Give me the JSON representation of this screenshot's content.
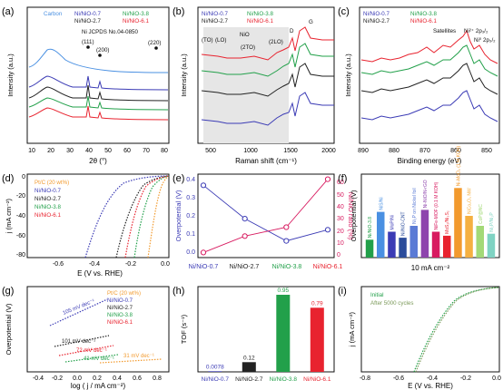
{
  "colors": {
    "carbon": "#4a90e2",
    "ni07": "#3b3bb5",
    "ni27": "#222222",
    "ni38": "#22a04a",
    "ni61": "#e8232f",
    "ptc": "#f29a2e",
    "magenta": "#d81b60",
    "axis": "#111111"
  },
  "panels": {
    "a": {
      "label": "(a)",
      "xlabel": "2θ (°)",
      "ylabel": "Intensity (a.u.)",
      "xticks": [
        "10",
        "20",
        "30",
        "40",
        "50",
        "60",
        "70",
        "80"
      ],
      "legend": [
        "Carbon",
        "Ni/NiO-0.7",
        "Ni/NiO-2.7",
        "Ni/NiO-3.8",
        "Ni/NiO-6.1"
      ],
      "peaks": [
        "(111)",
        "(200)",
        "(220)"
      ],
      "ref": "Ni JCPDS No.04-0850"
    },
    "b": {
      "label": "(b)",
      "xlabel": "Raman shift (cm⁻¹)",
      "ylabel": "Intensity (a.u.)",
      "xticks": [
        "500",
        "1000",
        "1500",
        "2000"
      ],
      "legend": [
        "Ni/NiO-0.7",
        "Ni/NiO-2.7",
        "Ni/NiO-3.8",
        "Ni/NiO-6.1"
      ],
      "annotations": [
        "(TO)",
        "(LO)",
        "NiO",
        "(2TO)",
        "(2LO)",
        "D",
        "G"
      ]
    },
    "c": {
      "label": "(c)",
      "xlabel": "Binding energy (eV)",
      "ylabel": "Intensity (a.u.)",
      "xticks": [
        "890",
        "880",
        "870",
        "860",
        "850"
      ],
      "legend": [
        "Ni/NiO-0.7",
        "Ni/NiO-2.7",
        "Ni/NiO-3.8",
        "Ni/NiO-6.1"
      ],
      "annotations": [
        "Satellites",
        "Ni²⁺ 2p₃/₂",
        "Ni⁰ 2p₃/₂"
      ]
    },
    "d": {
      "label": "(d)",
      "xlabel": "E (V vs. RHE)",
      "ylabel": "j (mA cm⁻²)",
      "xticks": [
        "-0.6",
        "-0.4",
        "-0.2",
        "0.0"
      ],
      "yticks": [
        "0",
        "-20",
        "-40",
        "-60",
        "-80"
      ],
      "legend": [
        "Pt/C (20 wt%)",
        "Ni/NiO-0.7",
        "Ni/NiO-2.7",
        "Ni/NiO-3.8",
        "Ni/NiO-6.1"
      ]
    },
    "e": {
      "label": "(e)",
      "ylabel_left": "Overpotential (V)",
      "ylabel_right": "Ni/NiO ratio (%)",
      "yticks_left": [
        "0.0",
        "0.1",
        "0.2",
        "0.3",
        "0.4"
      ],
      "yticks_right": [
        "0",
        "10",
        "20",
        "30",
        "40",
        "50",
        "60"
      ],
      "categories": [
        "Ni/NiO-0.7",
        "Ni/NiO-2.7",
        "Ni/NiO-3.8",
        "Ni/NiO-6.1"
      ]
    },
    "f": {
      "label": "(f)",
      "ylabel": "Overpotential (V)",
      "xlabel": "10 mA cm⁻²",
      "bar_labels": [
        "Ni/NiO-3.8",
        "NiS/Ni",
        "MoP/Ni",
        "Ni/NiO-CNT",
        "Ni₂P on Nickel foil",
        "Ni-NiO/N-rGO",
        "NiFe-MOF (0.1 M KOH)",
        "MoS₂/Ni₃S₂",
        "Ni-MoO₂ (1 M KOH)",
        "NiCo₂O₄ NW",
        "CoP@NC",
        "Ni₂P/Ni₂P"
      ]
    },
    "g": {
      "label": "(g)",
      "xlabel": "log ( j / mA cm⁻²)",
      "ylabel": "Overpotential (V)",
      "xticks": [
        "-0.4",
        "-0.2",
        "0.0",
        "0.2",
        "0.4",
        "0.6",
        "0.8"
      ],
      "legend": [
        "Pt/C (20 wt%)",
        "Ni/NiO-0.7",
        "Ni/NiO-2.7",
        "Ni/NiO-3.8",
        "Ni/NiO-6.1"
      ],
      "slopes": [
        "105 mV dec⁻¹",
        "101 mV dec⁻¹",
        "72 mV dec⁻¹",
        "41 mV dec⁻¹",
        "31 mV dec⁻¹"
      ]
    },
    "h": {
      "label": "(h)",
      "ylabel": "TOF (s⁻¹)"
    },
    "i": {
      "label": "(i)",
      "xlabel": "E (V vs. RHE)",
      "ylabel": "j (mA cm⁻²)",
      "xticks": [
        "-0.8",
        "-0.6",
        "-0.4",
        "-0.2",
        "0.0"
      ],
      "legend": [
        "Initial",
        "After 5000 cycles"
      ]
    }
  },
  "chart_data": [
    {
      "panel": "e",
      "type": "line",
      "categories": [
        "Ni/NiO-0.7",
        "Ni/NiO-2.7",
        "Ni/NiO-3.8",
        "Ni/NiO-6.1"
      ],
      "series": [
        {
          "name": "Overpotential (V)",
          "axis": "left",
          "values": [
            0.39,
            0.21,
            0.09,
            0.15
          ],
          "ylim": [
            0,
            0.45
          ]
        },
        {
          "name": "Ni/NiO ratio (%)",
          "axis": "right",
          "values": [
            2,
            15,
            22,
            60
          ],
          "ylim": [
            -2,
            64
          ]
        }
      ]
    },
    {
      "panel": "f",
      "type": "bar",
      "categories": [
        "Ni/NiO-3.8",
        "NiS/Ni",
        "MoP/Ni",
        "Ni/NiO-CNT",
        "Ni₂P on Nickel foil",
        "Ni-NiO/N-rGO",
        "NiFe-MOF (0.1 M KOH)",
        "MoS₂/Ni₃S₂",
        "Ni-MoO₂ (1 M KOH)",
        "NiCo₂O₄ NW",
        "CoP@NC",
        "Ni₂P/Ni₂P"
      ],
      "values": [
        0.09,
        0.23,
        0.13,
        0.1,
        0.16,
        0.24,
        0.13,
        0.11,
        0.35,
        0.21,
        0.16,
        0.12
      ],
      "ylim": [
        0,
        0.42
      ]
    },
    {
      "panel": "h",
      "type": "bar",
      "categories": [
        "Ni/NiO-0.7",
        "Ni/NiO-2.7",
        "Ni/NiO-3.8",
        "Ni/NiO-6.1"
      ],
      "values": [
        0.0078,
        0.12,
        0.95,
        0.79
      ],
      "value_labels": [
        "0.0078",
        "0.12",
        "0.95",
        "0.79"
      ],
      "ylim": [
        0,
        1.05
      ]
    }
  ]
}
